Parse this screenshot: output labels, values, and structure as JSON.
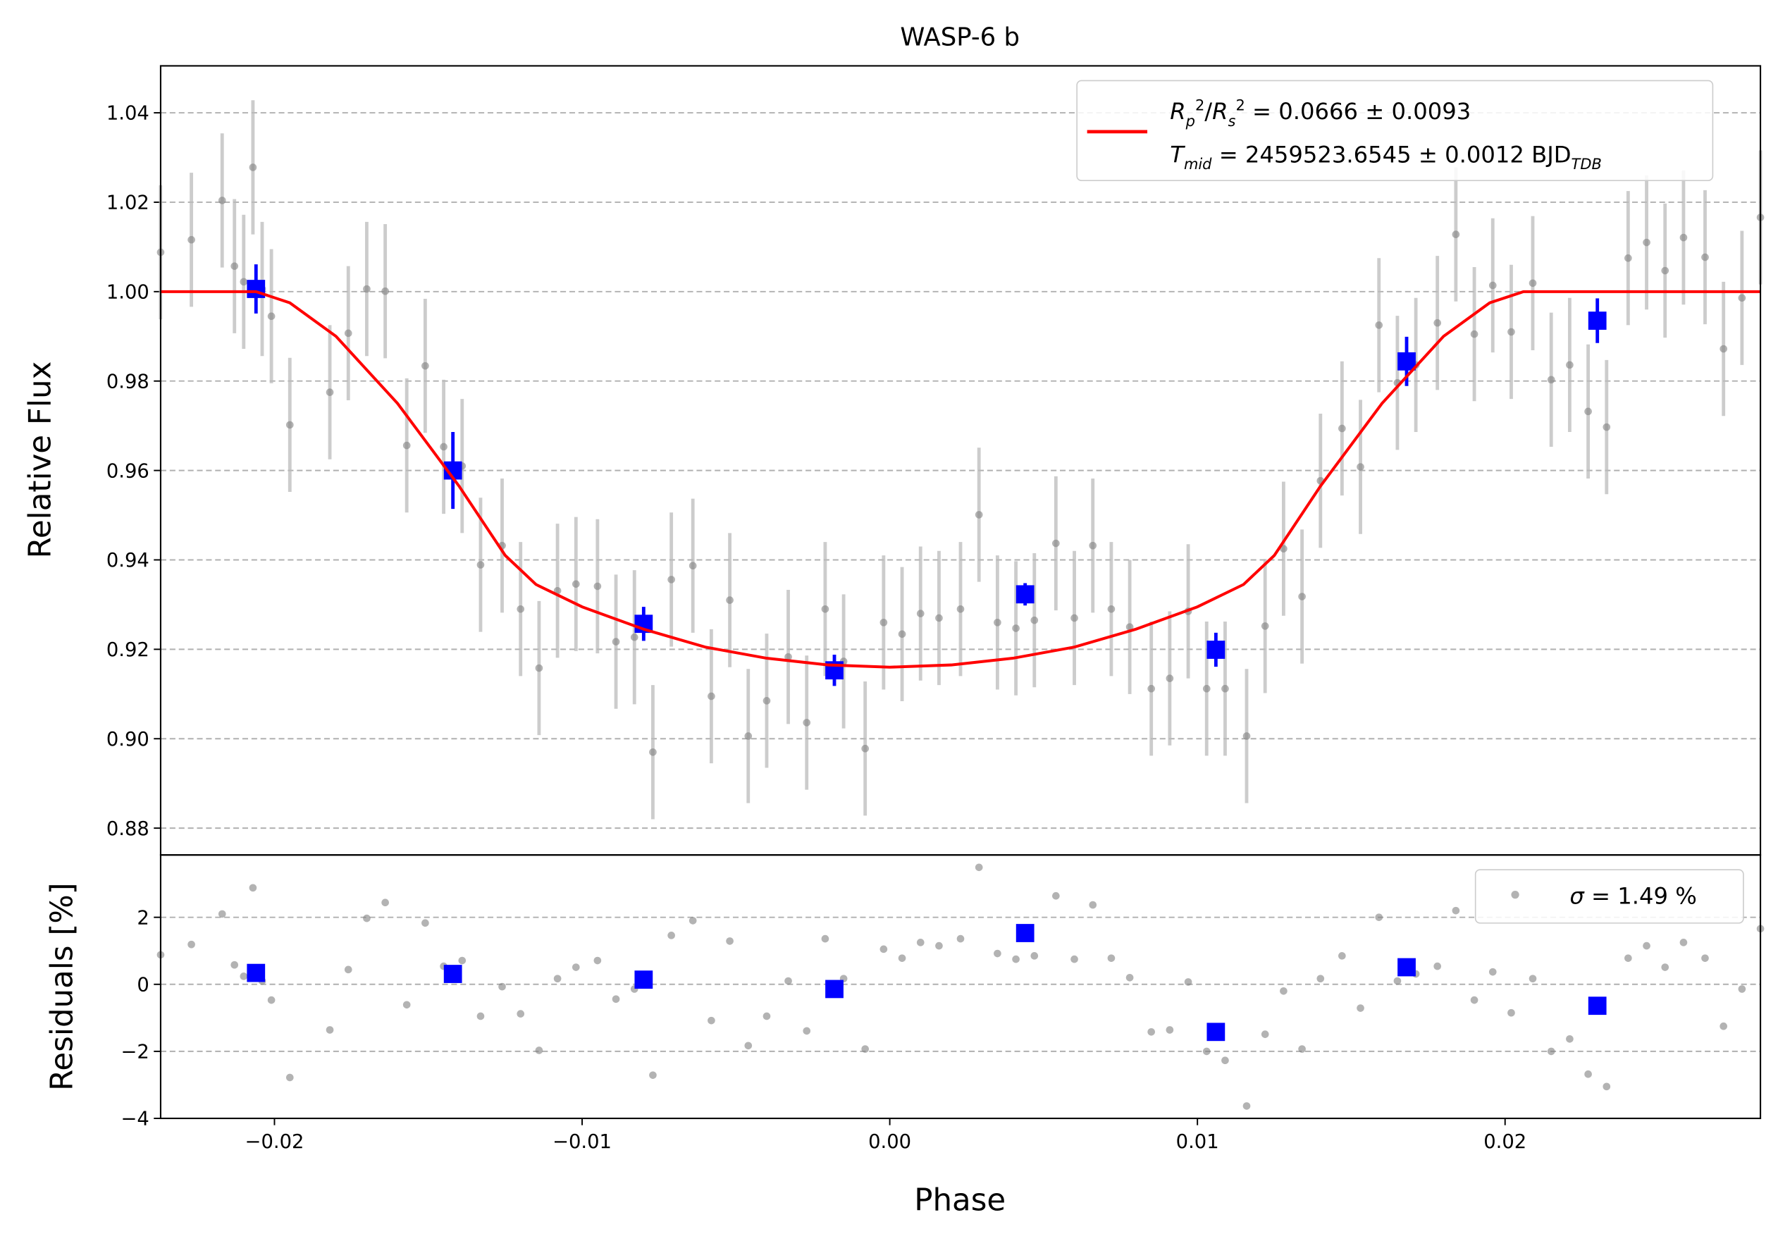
{
  "chart_data": [
    {
      "type": "scatter",
      "title": "WASP-6 b",
      "ylabel": "Relative Flux",
      "xlim": [
        -0.0237,
        0.0283
      ],
      "ylim": [
        0.874,
        1.0505
      ],
      "yticks": [
        1.04,
        1.02,
        {
          "value": 1.0,
          "label": "1.00"
        },
        0.98,
        0.96,
        0.94,
        0.92,
        {
          "value": 0.9,
          "label": "0.90"
        },
        0.88
      ],
      "grid": true,
      "legend": {
        "loc": "upper right",
        "lines": [
          [
            "R",
            "p",
            "2",
            "/",
            "R",
            "s",
            "2",
            " = 0.0666 ± 0.0093"
          ],
          [
            "T",
            "mid",
            " = 2459523.6545 ± 0.0012 BJD",
            "TDB"
          ]
        ]
      },
      "series": [
        {
          "marker": "o",
          "color": "#808080",
          "error": 0.015,
          "x": [
            -0.0237,
            -0.0227,
            -0.0217,
            -0.0213,
            -0.021,
            -0.0207,
            -0.0204,
            -0.0201,
            -0.0195,
            -0.0182,
            -0.0176,
            -0.017,
            -0.0164,
            -0.0157,
            -0.0151,
            -0.0145,
            -0.0139,
            -0.0133,
            -0.0126,
            -0.012,
            -0.0114,
            -0.0108,
            -0.0102,
            -0.0095,
            -0.0089,
            -0.0083,
            -0.0077,
            -0.0071,
            -0.0064,
            -0.0058,
            -0.0052,
            -0.0046,
            -0.004,
            -0.0033,
            -0.0027,
            -0.0021,
            -0.0015,
            -0.0008,
            -0.0002,
            0.0004,
            0.001,
            0.0016,
            0.0023,
            0.0029,
            0.0035,
            0.0041,
            0.0047,
            0.0054,
            0.006,
            0.0066,
            0.0072,
            0.0078,
            0.0085,
            0.0091,
            0.0097,
            0.0103,
            0.0109,
            0.0116,
            0.0122,
            0.0128,
            0.0134,
            0.014,
            0.0147,
            0.0153,
            0.0159,
            0.0165,
            0.0171,
            0.0178,
            0.0184,
            0.019,
            0.0196,
            0.0202,
            0.0209,
            0.0215,
            0.0221,
            0.0227,
            0.0233,
            0.024,
            0.0246,
            0.0252,
            0.0258,
            0.0265,
            0.0271,
            0.0277,
            0.0283
          ],
          "values": [
            1.0088,
            1.0116,
            1.0204,
            1.0057,
            1.0022,
            1.0278,
            1.0006,
            0.9945,
            0.9702,
            0.9775,
            0.9907,
            1.0006,
            1.0001,
            0.9656,
            0.9834,
            0.9653,
            0.961,
            0.9389,
            0.9432,
            0.929,
            0.9158,
            0.9331,
            0.9346,
            0.9341,
            0.9217,
            0.9227,
            0.897,
            0.9356,
            0.9387,
            0.9095,
            0.931,
            0.9006,
            0.9085,
            0.9183,
            0.9036,
            0.929,
            0.9173,
            0.8978,
            0.926,
            0.9234,
            0.928,
            0.927,
            0.929,
            0.9501,
            0.926,
            0.9247,
            0.9265,
            0.9437,
            0.927,
            0.9432,
            0.929,
            0.925,
            0.9112,
            0.9135,
            0.9285,
            0.9112,
            0.9112,
            0.9006,
            0.9252,
            0.9425,
            0.9318,
            0.9577,
            0.9694,
            0.9608,
            0.9925,
            0.9796,
            0.9836,
            0.993,
            1.0128,
            0.9905,
            1.0014,
            0.991,
            1.0019,
            0.9803,
            0.9836,
            0.9732,
            0.9697,
            1.0075,
            1.011,
            1.0047,
            1.0121,
            1.0077,
            0.9872,
            0.9986,
            1.0166
          ]
        },
        {
          "marker": "s",
          "color": "#0000ff",
          "x": [
            -0.0206,
            -0.0142,
            -0.008,
            -0.0018,
            0.0044,
            0.0106,
            0.0168,
            0.023
          ],
          "values": [
            1.0006,
            0.96,
            0.9257,
            0.9153,
            0.9323,
            0.9199,
            0.9844,
            0.9935
          ],
          "errors": [
            0.0055,
            0.0086,
            0.0038,
            0.0035,
            0.0025,
            0.0038,
            0.0055,
            0.005
          ]
        },
        {
          "marker": "line",
          "color": "#ff0000",
          "x": [
            -0.0237,
            -0.0206,
            -0.0195,
            -0.018,
            -0.016,
            -0.014,
            -0.0125,
            -0.0115,
            -0.01,
            -0.008,
            -0.006,
            -0.004,
            -0.002,
            0,
            0.002,
            0.004,
            0.006,
            0.008,
            0.01,
            0.0115,
            0.0125,
            0.014,
            0.016,
            0.018,
            0.0195,
            0.0206,
            0.0283
          ],
          "values": [
            1.0,
            1.0,
            0.9975,
            0.99,
            0.975,
            0.9565,
            0.941,
            0.9345,
            0.9295,
            0.9245,
            0.9205,
            0.918,
            0.9165,
            0.916,
            0.9165,
            0.918,
            0.9205,
            0.9245,
            0.9295,
            0.9345,
            0.941,
            0.9565,
            0.975,
            0.99,
            0.9975,
            1.0,
            1.0
          ]
        }
      ]
    },
    {
      "type": "scatter",
      "ylabel": "Residuals [%]",
      "xlabel": "Phase",
      "xlim": [
        -0.0237,
        0.0283
      ],
      "ylim": [
        -4,
        3.86
      ],
      "xticks": [
        {
          "value": -0.02,
          "label": "−0.02"
        },
        {
          "value": -0.01,
          "label": "−0.01"
        },
        {
          "value": 0,
          "label": "0.00"
        },
        0.01,
        0.02
      ],
      "yticks": [
        {
          "value": -4,
          "label": "−4"
        },
        {
          "value": -2,
          "label": "−2"
        },
        0,
        2
      ],
      "grid": true,
      "legend": {
        "loc": "upper right",
        "lines": [
          [
            "σ",
            " = 1.49 %"
          ]
        ]
      },
      "series": [
        {
          "marker": "o",
          "color": "#808080",
          "x": [
            -0.0237,
            -0.0227,
            -0.0217,
            -0.0213,
            -0.021,
            -0.0207,
            -0.0204,
            -0.0201,
            -0.0195,
            -0.0182,
            -0.0176,
            -0.017,
            -0.0164,
            -0.0157,
            -0.0151,
            -0.0145,
            -0.0139,
            -0.0133,
            -0.0126,
            -0.012,
            -0.0114,
            -0.0108,
            -0.0102,
            -0.0095,
            -0.0089,
            -0.0083,
            -0.0077,
            -0.0071,
            -0.0064,
            -0.0058,
            -0.0052,
            -0.0046,
            -0.004,
            -0.0033,
            -0.0027,
            -0.0021,
            -0.0015,
            -0.0008,
            -0.0002,
            0.0004,
            0.001,
            0.0016,
            0.0023,
            0.0029,
            0.0035,
            0.0041,
            0.0047,
            0.0054,
            0.006,
            0.0066,
            0.0072,
            0.0078,
            0.0085,
            0.0091,
            0.0097,
            0.0103,
            0.0109,
            0.0116,
            0.0122,
            0.0128,
            0.0134,
            0.014,
            0.0147,
            0.0153,
            0.0159,
            0.0165,
            0.0171,
            0.0178,
            0.0184,
            0.019,
            0.0196,
            0.0202,
            0.0209,
            0.0215,
            0.0221,
            0.0227,
            0.0233,
            0.024,
            0.0246,
            0.0252,
            0.0258,
            0.0265,
            0.0271,
            0.0277,
            0.0283
          ],
          "values": [
            0.88,
            1.19,
            2.1,
            0.58,
            0.24,
            2.88,
            0.1,
            -0.47,
            -2.78,
            -1.36,
            0.44,
            1.97,
            2.44,
            -0.61,
            1.83,
            0.54,
            0.71,
            -0.95,
            -0.07,
            -0.88,
            -1.97,
            0.17,
            0.51,
            0.71,
            -0.44,
            -0.14,
            -2.71,
            1.46,
            1.9,
            -1.08,
            1.29,
            -1.83,
            -0.95,
            0.1,
            -1.39,
            1.36,
            0.17,
            -1.93,
            1.05,
            0.78,
            1.25,
            1.15,
            1.36,
            3.49,
            0.92,
            0.75,
            0.85,
            2.64,
            0.75,
            2.37,
            0.78,
            0.2,
            -1.42,
            -1.36,
            0.07,
            -2.0,
            -2.27,
            -3.63,
            -1.49,
            -0.2,
            -1.93,
            0.17,
            0.85,
            -0.71,
            2.0,
            0.1,
            0.31,
            0.54,
            2.2,
            -0.47,
            0.37,
            -0.85,
            0.17,
            -2.0,
            -1.63,
            -2.68,
            -3.05,
            0.78,
            1.15,
            0.51,
            1.25,
            0.78,
            -1.25,
            -0.14,
            1.66
          ]
        },
        {
          "marker": "s",
          "color": "#0000ff",
          "x": [
            -0.0206,
            -0.0142,
            -0.008,
            -0.0018,
            0.0044,
            0.0106,
            0.0168,
            0.023
          ],
          "values": [
            0.34,
            0.31,
            0.14,
            -0.14,
            1.53,
            -1.42,
            0.51,
            -0.64
          ]
        }
      ]
    }
  ]
}
